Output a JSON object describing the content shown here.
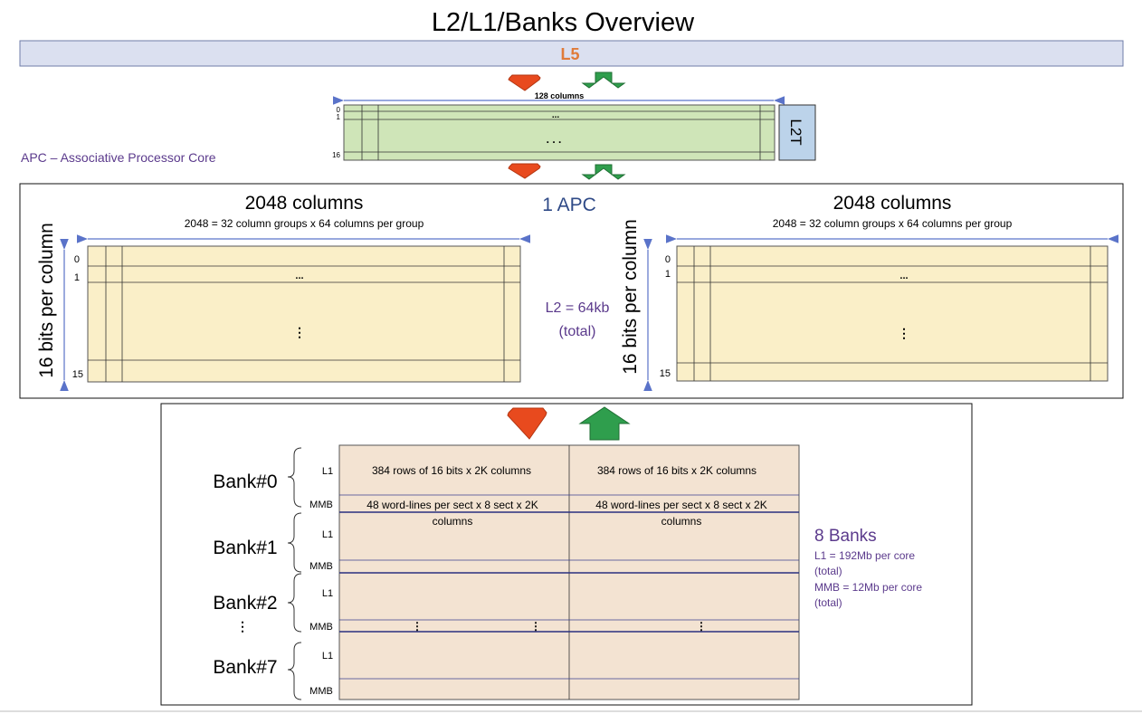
{
  "title": "L2/L1/Banks Overview",
  "l5": {
    "label": "L5"
  },
  "l2t": {
    "columns_label": "128 columns",
    "row_labels": [
      "0",
      "1",
      "16"
    ],
    "dots_top": "...",
    "dots_mid": ". . .",
    "side_label": "L2T"
  },
  "apc_note": "APC – Associative Processor Core",
  "apc": {
    "label": "1 APC",
    "l2_size": "L2 = 64kb",
    "l2_total": "(total)",
    "left": {
      "columns_title": "2048 columns",
      "columns_detail": "2048 = 32 column groups x 64 columns per group",
      "bits_label": "16 bits per column",
      "row_labels": [
        "0",
        "1",
        "15"
      ],
      "dots_top": "...",
      "dots_mid": "⋮"
    },
    "right": {
      "columns_title": "2048 columns",
      "columns_detail": "2048 = 32 column groups x 64 columns per group",
      "bits_label": "16 bits per column",
      "row_labels": [
        "0",
        "1",
        "15"
      ],
      "dots_top": "...",
      "dots_mid": "⋮"
    }
  },
  "banks": {
    "names": [
      "Bank#0",
      "Bank#1",
      "Bank#2",
      "⋮",
      "Bank#7"
    ],
    "row_labels": {
      "l1": "L1",
      "mmb": "MMB"
    },
    "l1_text_left": "384 rows of 16 bits x 2K columns",
    "l1_text_right": "384 rows of 16 bits x 2K columns",
    "mmb_text_left_1": "48 word-lines per sect x 8 sect x 2K",
    "mmb_text_left_2": "columns",
    "mmb_text_right_1": "48 word-lines per sect x 8 sect x 2K",
    "mmb_text_right_2": "columns",
    "vdots": "⋮",
    "summary_title": "8 Banks",
    "summary_lines": [
      "L1 = 192Mb per core",
      "(total)",
      "MMB = 12Mb per core",
      "(total)"
    ]
  },
  "colors": {
    "l5_fill": "#dbe0f0",
    "l5_text": "#e07b39",
    "l2t_fill": "#cfe5b8",
    "l2t_side_fill": "#bcd3ea",
    "apc_fill": "#faefc8",
    "bank_fill": "#f3e3d2",
    "purple": "#5b3a8c",
    "apc_blue": "#2f4a87",
    "arrow_down": "#e84a1e",
    "arrow_up": "#2f9e4d",
    "dim_line": "#5a73c9"
  }
}
